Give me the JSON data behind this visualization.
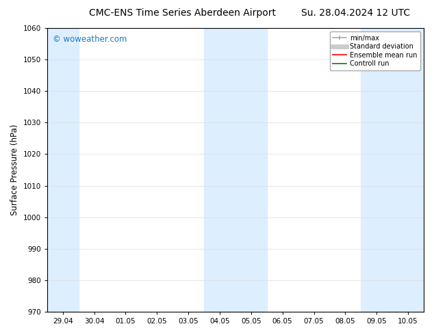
{
  "title_left": "CMC-ENS Time Series Aberdeen Airport",
  "title_right": "Su. 28.04.2024 12 UTC",
  "ylabel": "Surface Pressure (hPa)",
  "ylim": [
    970,
    1060
  ],
  "yticks": [
    970,
    980,
    990,
    1000,
    1010,
    1020,
    1030,
    1040,
    1050,
    1060
  ],
  "xtick_labels": [
    "29.04",
    "30.04",
    "01.05",
    "02.05",
    "03.05",
    "04.05",
    "05.05",
    "06.05",
    "07.05",
    "08.05",
    "09.05",
    "10.05"
  ],
  "background_color": "#ffffff",
  "plot_bg_color": "#ffffff",
  "shaded_color": "#ddeeff",
  "shaded_regions": [
    {
      "xstart": -0.5,
      "xend": 0.5
    },
    {
      "xstart": 4.5,
      "xend": 6.5
    },
    {
      "xstart": 9.5,
      "xend": 11.5
    }
  ],
  "watermark_text": "© woweather.com",
  "watermark_color": "#1a7abf",
  "legend_entries": [
    {
      "label": "min/max",
      "color": "#aaaaaa",
      "lw": 1.2
    },
    {
      "label": "Standard deviation",
      "color": "#cccccc",
      "lw": 5
    },
    {
      "label": "Ensemble mean run",
      "color": "#ff0000",
      "lw": 1.2
    },
    {
      "label": "Controll run",
      "color": "#008000",
      "lw": 1.2
    }
  ],
  "title_fontsize": 10,
  "tick_label_fontsize": 7.5,
  "ylabel_fontsize": 8.5,
  "watermark_fontsize": 8.5,
  "legend_fontsize": 7,
  "grid_color": "#dddddd",
  "grid_lw": 0.5,
  "spine_color": "#000000",
  "n_xticks": 12
}
